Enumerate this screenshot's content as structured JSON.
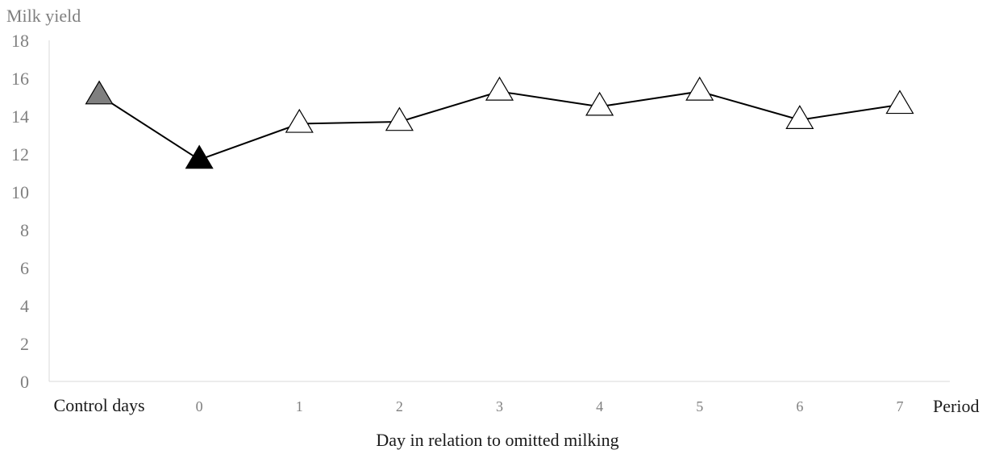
{
  "chart_data": {
    "type": "line",
    "ylabel": "Milk yield",
    "xlabel": "Day in relation to omitted milking",
    "x_axis_end_label": "Period",
    "categories": [
      "Control days",
      "0",
      "1",
      "2",
      "3",
      "4",
      "5",
      "6",
      "7"
    ],
    "ylim": [
      0,
      18
    ],
    "yticks": [
      0,
      2,
      4,
      6,
      8,
      10,
      12,
      14,
      16,
      18
    ],
    "grid": false,
    "series": [
      {
        "values": [
          15.1,
          11.7,
          13.6,
          13.7,
          15.3,
          14.5,
          15.3,
          13.8,
          14.6
        ],
        "marker": "triangle",
        "line_color": "#000000",
        "marker_fills": [
          "#7f7f7f",
          "#000000",
          "#ffffff",
          "#ffffff",
          "#ffffff",
          "#ffffff",
          "#ffffff",
          "#ffffff",
          "#ffffff"
        ]
      }
    ]
  }
}
